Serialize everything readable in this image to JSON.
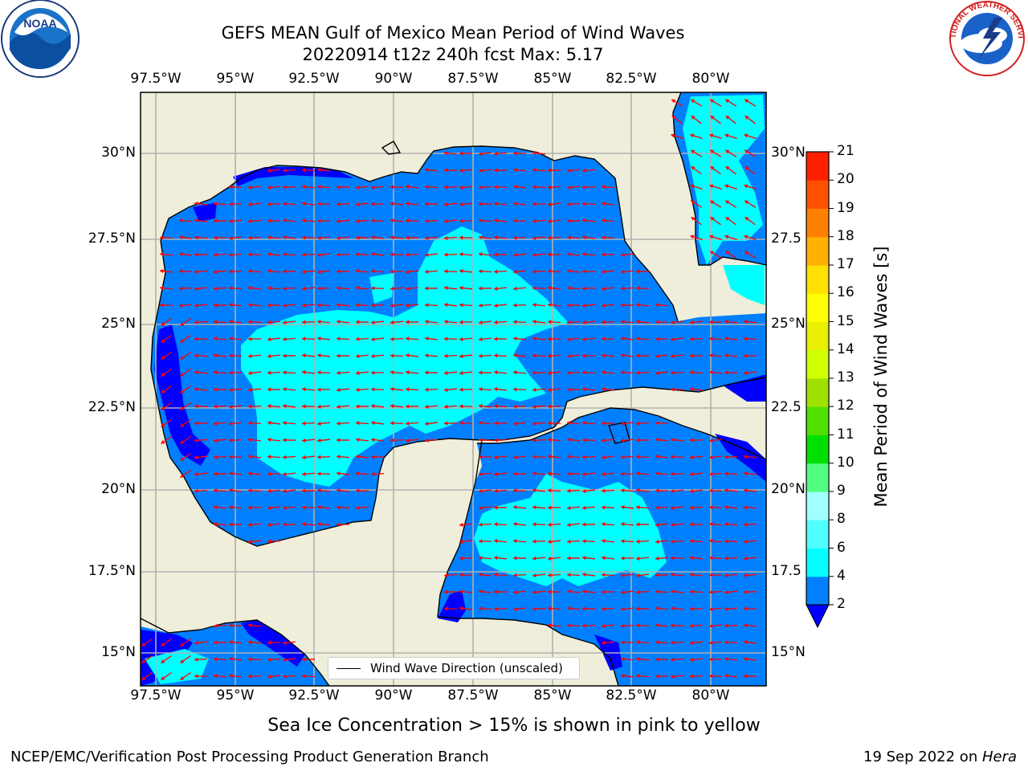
{
  "title_line1": "GEFS MEAN Gulf of Mexico Mean Period of Wind Waves",
  "title_line2": "20220914 t12z 240h fcst   Max: 5.17",
  "note": "Sea Ice Concentration > 15% is shown in pink to yellow",
  "footer_left": "NCEP/EMC/Verification Post Processing Product Generation Branch",
  "footer_right_prefix": "19 Sep 2022 on ",
  "footer_right_host": "Hera",
  "legend_label": "Wind Wave Direction (unscaled)",
  "logos": {
    "left": "NOAA",
    "right": "NATIONAL WEATHER SERVICE"
  },
  "map": {
    "lon_ticks": [
      "97.5°W",
      "95°W",
      "92.5°W",
      "90°W",
      "87.5°W",
      "85°W",
      "82.5°W",
      "80°W"
    ],
    "lat_ticks_left": [
      "30°N",
      "27.5°N",
      "25°N",
      "22.5°N",
      "20°N",
      "17.5°N",
      "15°N"
    ],
    "lat_ticks_right": [
      "30°N",
      "27.5",
      "25°N",
      "22.5",
      "20°N",
      "17.5",
      "15°N"
    ],
    "colors": {
      "land": "#efeedb",
      "ocean_2_4": "#0080ff",
      "ocean_4_6": "#00ffff",
      "below_2": "#0000ff",
      "arrow": "#ff0000",
      "grid": "#b0b0b0"
    }
  },
  "colorbar": {
    "title": "Mean Period of Wind Waves [s]",
    "levels": [
      "2",
      "4",
      "6",
      "8",
      "9",
      "10",
      "11",
      "12",
      "13",
      "14",
      "15",
      "16",
      "17",
      "18",
      "19",
      "20",
      "21"
    ],
    "colors": [
      "#0080ff",
      "#00ffff",
      "#50ffff",
      "#a0ffff",
      "#50ff80",
      "#00e000",
      "#50e000",
      "#a0e000",
      "#d0ff00",
      "#e8f000",
      "#ffff00",
      "#ffe000",
      "#ffb000",
      "#ff8000",
      "#ff5000",
      "#ff2000"
    ],
    "under_color": "#0000ff"
  }
}
